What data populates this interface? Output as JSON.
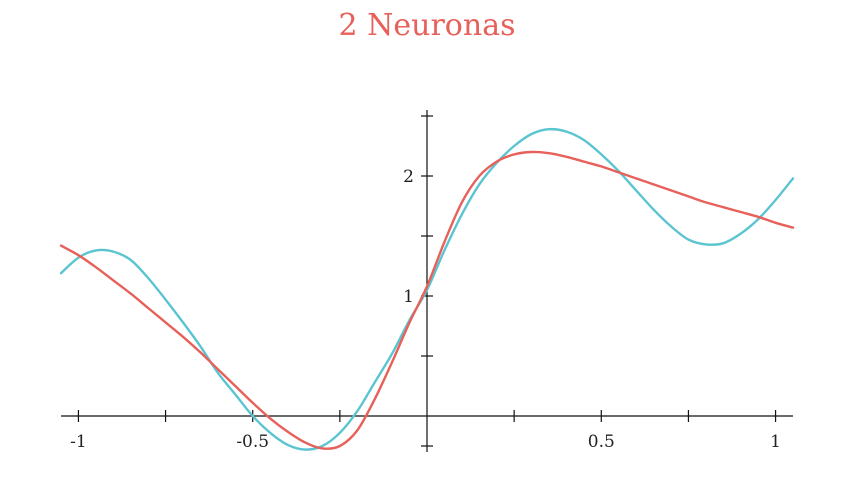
{
  "chart_data": {
    "type": "line",
    "title": "2 Neuronas",
    "title_color": "#e8605a",
    "xlabel": "",
    "ylabel": "",
    "xlim": [
      -1.05,
      1.05
    ],
    "ylim": [
      -0.3,
      2.55
    ],
    "grid": false,
    "legend": "none",
    "x_ticks": [
      -1,
      -0.75,
      -0.5,
      -0.25,
      0.25,
      0.5,
      0.75,
      1
    ],
    "x_tick_labels": [
      {
        "value": -1,
        "label": "-1"
      },
      {
        "value": -0.5,
        "label": "-0.5"
      },
      {
        "value": 0.5,
        "label": "0.5"
      },
      {
        "value": 1,
        "label": "1"
      }
    ],
    "y_ticks": [
      -0.25,
      0.5,
      1,
      1.5,
      2,
      2.5
    ],
    "y_tick_labels": [
      {
        "value": 1,
        "label": "1"
      },
      {
        "value": 2,
        "label": "2"
      }
    ],
    "series": [
      {
        "color": "#5bc4d1",
        "x": [
          -1.05,
          -1.0,
          -0.95,
          -0.9,
          -0.85,
          -0.8,
          -0.75,
          -0.7,
          -0.65,
          -0.6,
          -0.55,
          -0.5,
          -0.45,
          -0.4,
          -0.35,
          -0.3,
          -0.25,
          -0.2,
          -0.15,
          -0.1,
          -0.05,
          0.0,
          0.05,
          0.1,
          0.15,
          0.2,
          0.25,
          0.3,
          0.35,
          0.4,
          0.45,
          0.5,
          0.55,
          0.6,
          0.65,
          0.7,
          0.75,
          0.8,
          0.85,
          0.9,
          0.95,
          1.0,
          1.05
        ],
        "y": [
          1.19,
          1.32,
          1.38,
          1.37,
          1.3,
          1.15,
          0.97,
          0.78,
          0.58,
          0.36,
          0.18,
          0.0,
          -0.14,
          -0.24,
          -0.28,
          -0.25,
          -0.14,
          0.04,
          0.28,
          0.52,
          0.8,
          1.05,
          1.38,
          1.68,
          1.93,
          2.11,
          2.25,
          2.35,
          2.39,
          2.37,
          2.3,
          2.18,
          2.04,
          1.88,
          1.72,
          1.58,
          1.47,
          1.43,
          1.44,
          1.52,
          1.64,
          1.8,
          1.98
        ]
      },
      {
        "color": "#e8605a",
        "x": [
          -1.05,
          -1.0,
          -0.95,
          -0.9,
          -0.85,
          -0.8,
          -0.75,
          -0.7,
          -0.65,
          -0.6,
          -0.55,
          -0.5,
          -0.45,
          -0.4,
          -0.35,
          -0.3,
          -0.25,
          -0.2,
          -0.15,
          -0.1,
          -0.05,
          0.0,
          0.05,
          0.1,
          0.15,
          0.2,
          0.25,
          0.3,
          0.35,
          0.4,
          0.45,
          0.5,
          0.55,
          0.6,
          0.65,
          0.7,
          0.75,
          0.8,
          0.85,
          0.9,
          0.95,
          1.0,
          1.05
        ],
        "y": [
          1.42,
          1.34,
          1.24,
          1.13,
          1.02,
          0.9,
          0.78,
          0.66,
          0.53,
          0.39,
          0.25,
          0.11,
          -0.02,
          -0.13,
          -0.22,
          -0.27,
          -0.25,
          -0.12,
          0.14,
          0.45,
          0.78,
          1.08,
          1.45,
          1.78,
          2.0,
          2.12,
          2.18,
          2.2,
          2.19,
          2.16,
          2.12,
          2.08,
          2.03,
          1.98,
          1.93,
          1.88,
          1.83,
          1.78,
          1.74,
          1.7,
          1.66,
          1.61,
          1.57
        ]
      }
    ]
  }
}
